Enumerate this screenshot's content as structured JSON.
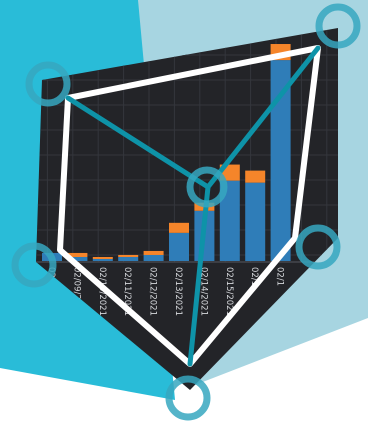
{
  "colors": {
    "background": "#ffffff",
    "bg_cyan": "#29bcd8",
    "bg_light_blue": "#a7d5e1",
    "panel_dark": "#232428",
    "grid": "#34363c",
    "bar_blue": "#2f7db8",
    "bar_orange": "#f5852a",
    "outline": "#ffffff",
    "teal": "#0e93a8",
    "ring": "#36a7c0"
  },
  "chart_data": {
    "type": "bar",
    "stacked": true,
    "x_tick_labels": [
      "02/0",
      "02/09/2021",
      "02/10/2021",
      "02/11/2021",
      "02/12/2021",
      "02/13/2021",
      "02/14/2021",
      "02/15/2021",
      "02/1",
      "02/1"
    ],
    "series": [
      {
        "color": "#2f7db8",
        "values": [
          4,
          2,
          1,
          2,
          3,
          14,
          25,
          40,
          39,
          100
        ]
      },
      {
        "color": "#f5852a",
        "values": [
          0,
          2,
          1,
          1,
          2,
          5,
          4,
          8,
          6,
          8
        ]
      }
    ],
    "ylim": [
      0,
      110
    ],
    "grid": true,
    "x_label_rotation": "vertical"
  }
}
